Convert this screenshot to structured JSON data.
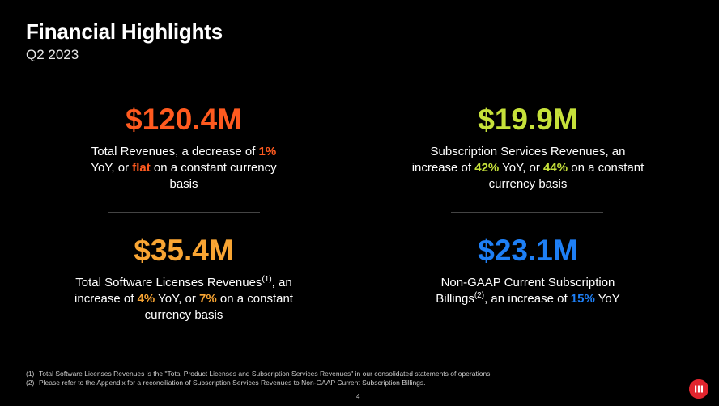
{
  "header": {
    "title": "Financial Highlights",
    "subtitle": "Q2 2023"
  },
  "colors": {
    "orange": "#ff5a1f",
    "lime": "#c6e13a",
    "amber": "#f9a533",
    "blue": "#1e7ff5",
    "logo_red": "#e1252e"
  },
  "metrics": {
    "total_revenues": {
      "value": "$120.4M",
      "pre1": "Total Revenues, a decrease of ",
      "hl1": "1%",
      "mid1": " YoY, or ",
      "hl2": "flat",
      "post": " on a constant currency basis"
    },
    "subscription_services": {
      "value": "$19.9M",
      "pre1": "Subscription Services Revenues, an increase of ",
      "hl1": "42%",
      "mid1": " YoY, or ",
      "hl2": "44%",
      "post": " on a constant currency basis"
    },
    "software_licenses": {
      "value": "$35.4M",
      "pre1": "Total Software Licenses Revenues",
      "sup": "(1)",
      "pre2": ", an increase of ",
      "hl1": "4%",
      "mid1": " YoY, or ",
      "hl2": "7%",
      "post": " on a constant currency basis"
    },
    "billings": {
      "value": "$23.1M",
      "pre1": "Non-GAAP Current Subscription Billings",
      "sup": "(2)",
      "pre2": ", an increase of ",
      "hl1": "15%",
      "post": " YoY"
    }
  },
  "footnotes": [
    {
      "num": "(1)",
      "text": "Total Software Licenses Revenues is the \"Total Product Licenses and Subscription Services Revenues\" in our consolidated statements of operations."
    },
    {
      "num": "(2)",
      "text": "Please refer to the Appendix for a reconciliation of Subscription Services Revenues to Non-GAAP Current Subscription Billings."
    }
  ],
  "page_number": "4",
  "logo": {
    "icon": "microstrategy-logo-icon"
  }
}
